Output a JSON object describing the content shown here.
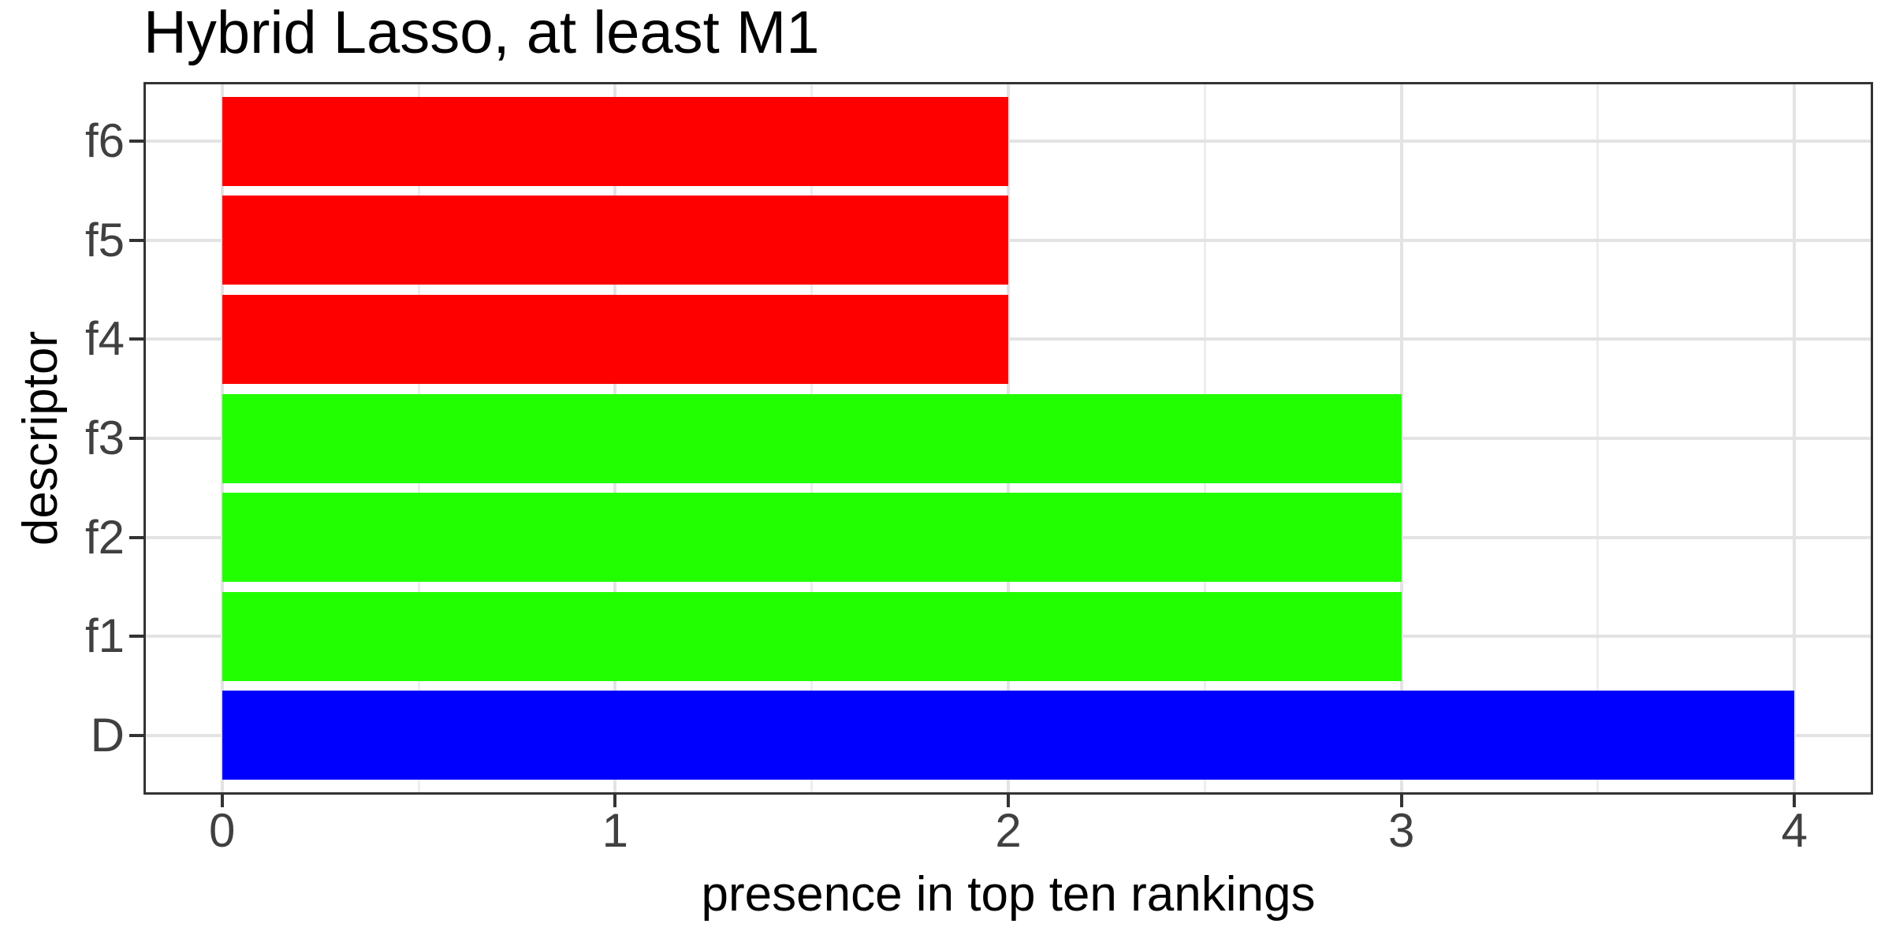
{
  "chart_data": {
    "type": "bar",
    "orientation": "horizontal",
    "title": "Hybrid Lasso, at least M1",
    "xlabel": "presence in top ten rankings",
    "ylabel": "descriptor",
    "categories": [
      "f6",
      "f5",
      "f4",
      "f3",
      "f2",
      "f1",
      "D"
    ],
    "values": [
      2,
      2,
      2,
      3,
      3,
      3,
      4
    ],
    "bar_colors": [
      "#ff0000",
      "#ff0000",
      "#ff0000",
      "#22ff00",
      "#22ff00",
      "#22ff00",
      "#0000ff"
    ],
    "xlim": [
      0,
      4
    ],
    "x_major_ticks": [
      0,
      1,
      2,
      3,
      4
    ],
    "x_tick_labels": [
      "0",
      "1",
      "2",
      "3",
      "4"
    ],
    "x_minor_gridlines": [
      0.5,
      1.5,
      2.5,
      3.5
    ],
    "bar_width_fraction": 0.9,
    "grid": "major x+y, minor x",
    "legend": "none",
    "panel_border_color": "#333333",
    "grid_major_color": "#e3e3e3",
    "grid_minor_color": "#ededed",
    "tick_label_color": "#404040",
    "text_color": "#000000"
  }
}
